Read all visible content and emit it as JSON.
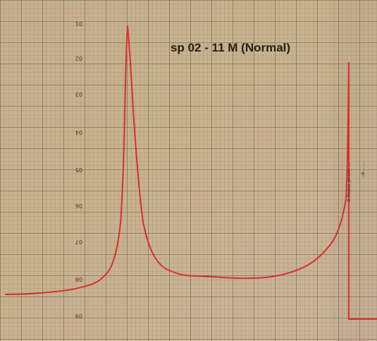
{
  "title": "sp 02 - 11 M (Normal)",
  "scale_labels": [
    "01",
    "02",
    "03",
    "04",
    "05",
    "06",
    "07",
    "08",
    "09"
  ],
  "handwritten_notes": [
    "D.Mobile phase: ...",
    "ok... ..."
  ],
  "colors": {
    "paper": "#c8b08c",
    "grid_minor": "#7e806f",
    "grid_major": "#515943",
    "trace": "#d82f2f"
  }
}
